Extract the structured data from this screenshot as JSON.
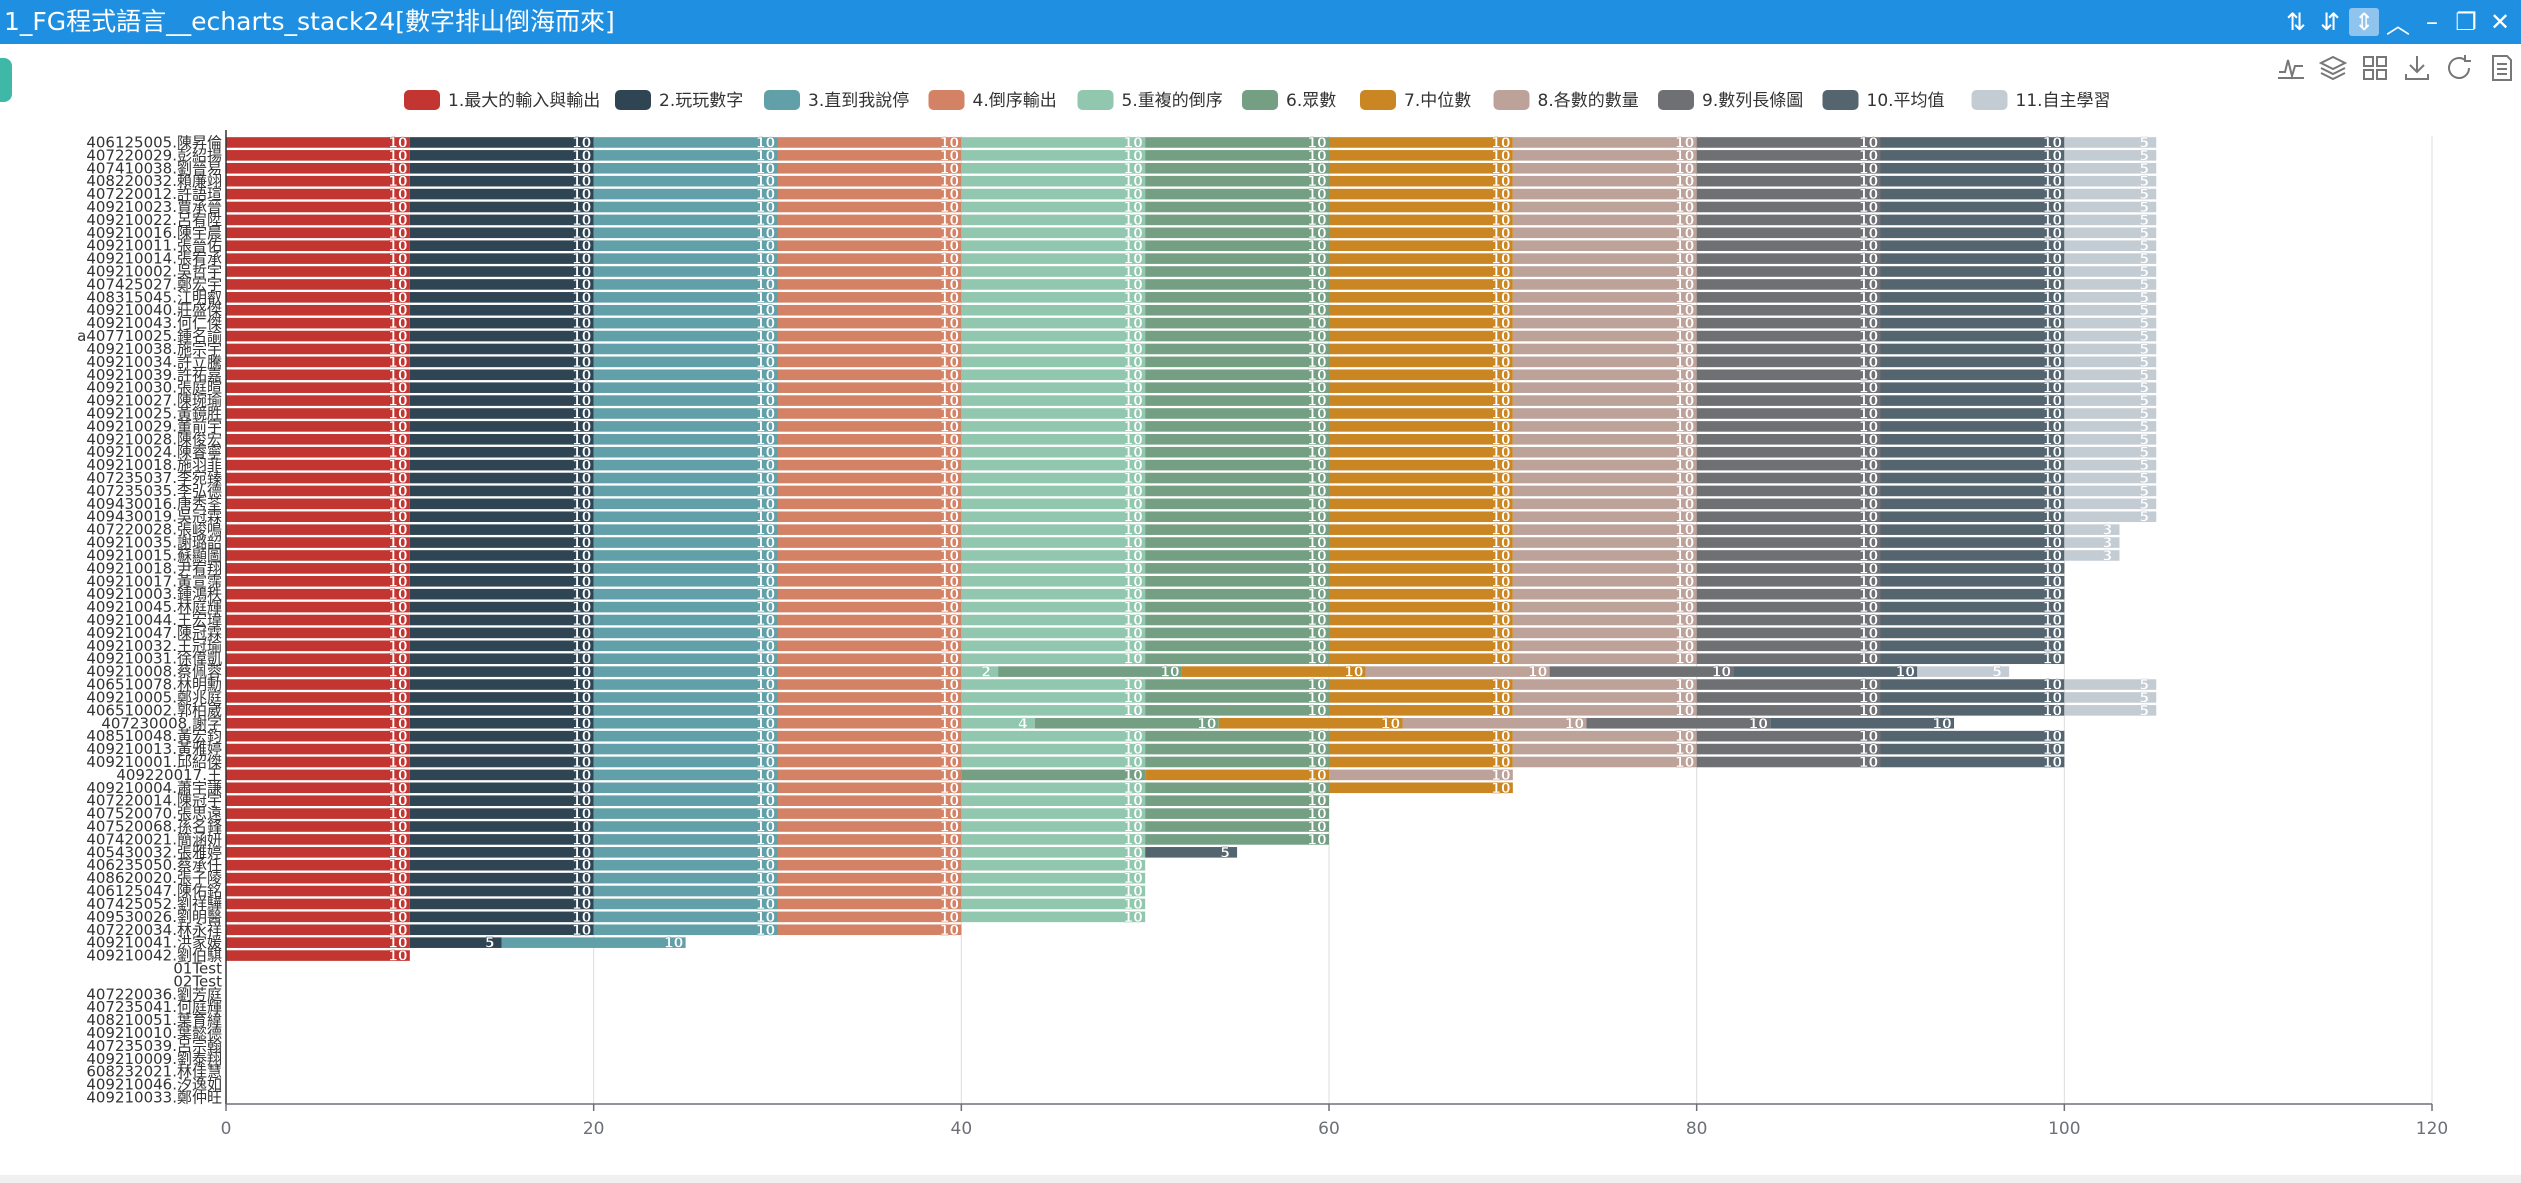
{
  "window": {
    "title": "1_FG程式語言__echarts_stack24[數字排山倒海而來]",
    "controls": [
      "sort-asc-icon",
      "sort-desc-icon",
      "sort-toggle-icon",
      "chevron-up-icon",
      "minimize-icon",
      "maximize-icon",
      "close-icon"
    ],
    "accent": "#1e8fe1"
  },
  "toolbox": [
    "line-chart-icon",
    "stack-icon",
    "tile-icon",
    "download-icon",
    "refresh-icon",
    "data-view-icon"
  ],
  "chart_data": {
    "type": "bar",
    "orientation": "horizontal",
    "stacked": true,
    "xlim": [
      0,
      120
    ],
    "x_ticks": [
      0,
      20,
      40,
      60,
      80,
      100,
      120
    ],
    "grid": true,
    "legend_position": "top-center",
    "categories": [
      "409210033.鄭仲旺",
      "409210046.汐逸如",
      "608232021.林佳慧",
      "409210009.劉泰翔",
      "407235039.呂宗翰",
      "409210010.葉懿德",
      "408210051.葉育緯",
      "407235041.何庭輝",
      "407220036.劉芳庭",
      "02Test",
      "01Test",
      "409210042.劉伯騏",
      "409210041.洪家媛",
      "407220034.林永祥",
      "409530026.劉明醫",
      "407425052.劉祥驊",
      "406125047.陳佑銘",
      "408620020.張子陵",
      "406235050.蔡承任",
      "405430032.張雅婷",
      "407420021.簡涵妍",
      "407520068.孫名鋒",
      "407520070.張思遠",
      "407220014.陳冠宇",
      "409210004.蕭宇謙",
      "409220017.王",
      "409210001.邱紹傑",
      "409210013.黃雅婷",
      "408510048.黃宏鈞",
      "407230008.謝字",
      "406510002.郭柏崴",
      "409210005.鄭兆庭",
      "406510078.林明勳",
      "409210008.蔡佩蓉",
      "409210031.徐偉凱",
      "409210032.王冠瑜",
      "409210047.陳冠霖",
      "409210044.王宏瑋",
      "409210045.林庭輝",
      "409210003.鍾鴻秩",
      "409210017.黃宣霈",
      "409210018.尹宥翔",
      "409210015.蘇顯圖",
      "409210035.謝璐韶",
      "407220028.張峻鳴",
      "409430019.吳冠霖",
      "409430016.唐秀荃",
      "407235035.李弘德",
      "407235037.李宛臻",
      "409210018.施羽菲",
      "409210024.陳睿寧",
      "409210028.陳俊宏",
      "409210029.董前宇",
      "409210025.黃鏡胜",
      "409210027.陳琬瑜",
      "409210030.張庭暄",
      "409210039.許祐嘉",
      "409210034.許立騰",
      "409210038.施宗宇",
      "a407710025.鍾名諭",
      "409210043.何仁傑",
      "409210040.莊盛傑",
      "408315045.江明叡",
      "407425027.鄭宏宇",
      "409210002.吳哲宇",
      "409210014.張宥承",
      "409210011.張晉佑",
      "409210016.陳宇晨",
      "409210022.呂宥陞",
      "409210023.賈承晉",
      "407220012.許語瑄",
      "408220032.賴廉翊",
      "407410038.劉晉易",
      "407220029.彭紹揚",
      "406125005.陳昇倫"
    ],
    "series": [
      {
        "name": "1.最大的輸入與輸出",
        "color": "#c23531",
        "values": [
          0,
          0,
          0,
          0,
          0,
          0,
          0,
          0,
          0,
          0,
          0,
          10,
          10,
          10,
          10,
          10,
          10,
          10,
          10,
          10,
          10,
          10,
          10,
          10,
          10,
          10,
          10,
          10,
          10,
          10,
          10,
          10,
          10,
          10,
          10,
          10,
          10,
          10,
          10,
          10,
          10,
          10,
          10,
          10,
          10,
          10,
          10,
          10,
          10,
          10,
          10,
          10,
          10,
          10,
          10,
          10,
          10,
          10,
          10,
          10,
          10,
          10,
          10,
          10,
          10,
          10,
          10,
          10,
          10,
          10,
          10,
          10,
          10,
          10,
          10
        ]
      },
      {
        "name": "2.玩玩數字",
        "color": "#2f4554",
        "values": [
          0,
          0,
          0,
          0,
          0,
          0,
          0,
          0,
          0,
          0,
          0,
          0,
          5,
          10,
          10,
          10,
          10,
          10,
          10,
          10,
          10,
          10,
          10,
          10,
          10,
          10,
          10,
          10,
          10,
          10,
          10,
          10,
          10,
          10,
          10,
          10,
          10,
          10,
          10,
          10,
          10,
          10,
          10,
          10,
          10,
          10,
          10,
          10,
          10,
          10,
          10,
          10,
          10,
          10,
          10,
          10,
          10,
          10,
          10,
          10,
          10,
          10,
          10,
          10,
          10,
          10,
          10,
          10,
          10,
          10,
          10,
          10,
          10,
          10,
          10
        ]
      },
      {
        "name": "3.直到我說停",
        "color": "#61a0a8",
        "values": [
          0,
          0,
          0,
          0,
          0,
          0,
          0,
          0,
          0,
          0,
          0,
          0,
          10,
          10,
          10,
          10,
          10,
          10,
          10,
          10,
          10,
          10,
          10,
          10,
          10,
          10,
          10,
          10,
          10,
          10,
          10,
          10,
          10,
          10,
          10,
          10,
          10,
          10,
          10,
          10,
          10,
          10,
          10,
          10,
          10,
          10,
          10,
          10,
          10,
          10,
          10,
          10,
          10,
          10,
          10,
          10,
          10,
          10,
          10,
          10,
          10,
          10,
          10,
          10,
          10,
          10,
          10,
          10,
          10,
          10,
          10,
          10,
          10,
          10,
          10
        ]
      },
      {
        "name": "4.倒序輸出",
        "color": "#d48265",
        "values": [
          0,
          0,
          0,
          0,
          0,
          0,
          0,
          0,
          0,
          0,
          0,
          0,
          0,
          10,
          10,
          10,
          10,
          10,
          10,
          10,
          10,
          10,
          10,
          10,
          10,
          10,
          10,
          10,
          10,
          10,
          10,
          10,
          10,
          10,
          10,
          10,
          10,
          10,
          10,
          10,
          10,
          10,
          10,
          10,
          10,
          10,
          10,
          10,
          10,
          10,
          10,
          10,
          10,
          10,
          10,
          10,
          10,
          10,
          10,
          10,
          10,
          10,
          10,
          10,
          10,
          10,
          10,
          10,
          10,
          10,
          10,
          10,
          10,
          10,
          10
        ]
      },
      {
        "name": "5.重複的倒序",
        "color": "#91c7ae",
        "values": [
          0,
          0,
          0,
          0,
          0,
          0,
          0,
          0,
          0,
          0,
          0,
          0,
          0,
          0,
          10,
          10,
          10,
          10,
          10,
          10,
          10,
          10,
          10,
          10,
          10,
          0,
          10,
          10,
          10,
          4,
          10,
          10,
          10,
          2,
          10,
          10,
          10,
          10,
          10,
          10,
          10,
          10,
          10,
          10,
          10,
          10,
          10,
          10,
          10,
          10,
          10,
          10,
          10,
          10,
          10,
          10,
          10,
          10,
          10,
          10,
          10,
          10,
          10,
          10,
          10,
          10,
          10,
          10,
          10,
          10,
          10,
          10,
          10,
          10,
          10
        ]
      },
      {
        "name": "6.眾數",
        "color": "#749f83",
        "values": [
          0,
          0,
          0,
          0,
          0,
          0,
          0,
          0,
          0,
          0,
          0,
          0,
          0,
          0,
          0,
          0,
          0,
          0,
          0,
          0,
          10,
          10,
          10,
          10,
          10,
          10,
          10,
          10,
          10,
          10,
          10,
          10,
          10,
          10,
          10,
          10,
          10,
          10,
          10,
          10,
          10,
          10,
          10,
          10,
          10,
          10,
          10,
          10,
          10,
          10,
          10,
          10,
          10,
          10,
          10,
          10,
          10,
          10,
          10,
          10,
          10,
          10,
          10,
          10,
          10,
          10,
          10,
          10,
          10,
          10,
          10,
          10,
          10,
          10,
          10
        ]
      },
      {
        "name": "7.中位數",
        "color": "#ca8622",
        "values": [
          0,
          0,
          0,
          0,
          0,
          0,
          0,
          0,
          0,
          0,
          0,
          0,
          0,
          0,
          0,
          0,
          0,
          0,
          0,
          0,
          0,
          0,
          0,
          0,
          10,
          10,
          10,
          10,
          10,
          10,
          10,
          10,
          10,
          10,
          10,
          10,
          10,
          10,
          10,
          10,
          10,
          10,
          10,
          10,
          10,
          10,
          10,
          10,
          10,
          10,
          10,
          10,
          10,
          10,
          10,
          10,
          10,
          10,
          10,
          10,
          10,
          10,
          10,
          10,
          10,
          10,
          10,
          10,
          10,
          10,
          10,
          10,
          10,
          10,
          10
        ]
      },
      {
        "name": "8.各數的數量",
        "color": "#bda29a",
        "values": [
          0,
          0,
          0,
          0,
          0,
          0,
          0,
          0,
          0,
          0,
          0,
          0,
          0,
          0,
          0,
          0,
          0,
          0,
          0,
          0,
          0,
          0,
          0,
          0,
          0,
          10,
          10,
          10,
          10,
          10,
          10,
          10,
          10,
          10,
          10,
          10,
          10,
          10,
          10,
          10,
          10,
          10,
          10,
          10,
          10,
          10,
          10,
          10,
          10,
          10,
          10,
          10,
          10,
          10,
          10,
          10,
          10,
          10,
          10,
          10,
          10,
          10,
          10,
          10,
          10,
          10,
          10,
          10,
          10,
          10,
          10,
          10,
          10,
          10,
          10
        ]
      },
      {
        "name": "9.數列長條圖",
        "color": "#6e7074",
        "values": [
          0,
          0,
          0,
          0,
          0,
          0,
          0,
          0,
          0,
          0,
          0,
          0,
          0,
          0,
          0,
          0,
          0,
          0,
          0,
          0,
          0,
          0,
          0,
          0,
          0,
          0,
          10,
          10,
          10,
          10,
          10,
          10,
          10,
          10,
          10,
          10,
          10,
          10,
          10,
          10,
          10,
          10,
          10,
          10,
          10,
          10,
          10,
          10,
          10,
          10,
          10,
          10,
          10,
          10,
          10,
          10,
          10,
          10,
          10,
          10,
          10,
          10,
          10,
          10,
          10,
          10,
          10,
          10,
          10,
          10,
          10,
          10,
          10,
          10,
          10
        ]
      },
      {
        "name": "10.平均值",
        "color": "#546570",
        "values": [
          0,
          0,
          0,
          0,
          0,
          0,
          0,
          0,
          0,
          0,
          0,
          0,
          0,
          0,
          0,
          0,
          0,
          0,
          0,
          5,
          0,
          0,
          0,
          0,
          0,
          0,
          10,
          10,
          10,
          10,
          10,
          10,
          10,
          10,
          10,
          10,
          10,
          10,
          10,
          10,
          10,
          10,
          10,
          10,
          10,
          10,
          10,
          10,
          10,
          10,
          10,
          10,
          10,
          10,
          10,
          10,
          10,
          10,
          10,
          10,
          10,
          10,
          10,
          10,
          10,
          10,
          10,
          10,
          10,
          10,
          10,
          10,
          10,
          10,
          10
        ]
      },
      {
        "name": "11.自主學習",
        "color": "#c4ccd3",
        "values": [
          0,
          0,
          0,
          0,
          0,
          0,
          0,
          0,
          0,
          0,
          0,
          0,
          0,
          0,
          0,
          0,
          0,
          0,
          0,
          0,
          0,
          0,
          0,
          0,
          0,
          0,
          0,
          0,
          0,
          0,
          5,
          5,
          5,
          5,
          0,
          0,
          0,
          0,
          0,
          0,
          0,
          0,
          3,
          3,
          3,
          5,
          5,
          5,
          5,
          5,
          5,
          5,
          5,
          5,
          5,
          5,
          5,
          5,
          5,
          5,
          5,
          5,
          5,
          5,
          5,
          5,
          5,
          5,
          5,
          5,
          5,
          5,
          5,
          5,
          5
        ]
      }
    ]
  }
}
